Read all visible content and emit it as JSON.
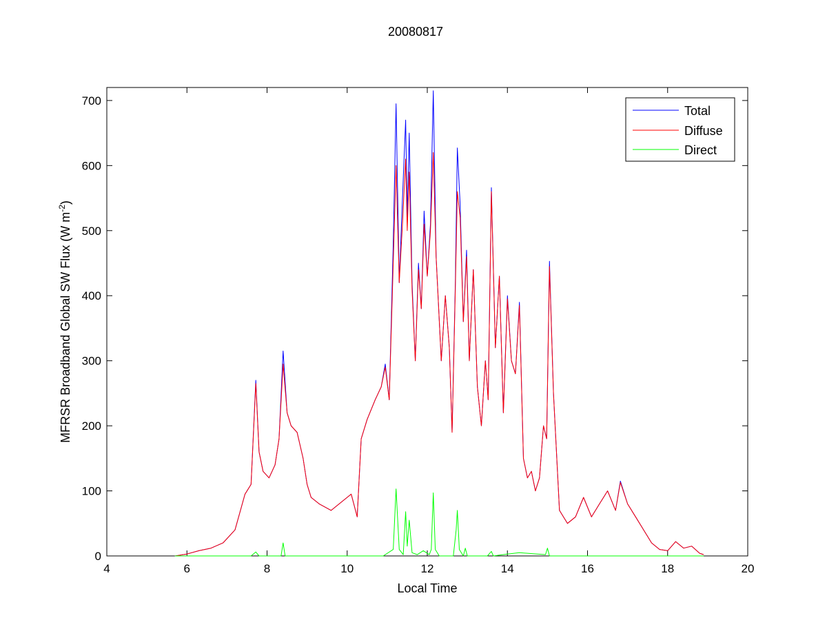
{
  "chart_data": {
    "type": "line",
    "title": "20080817",
    "xlabel": "Local Time",
    "ylabel": "MFRSR Broadband Global SW Flux (W m",
    "ylabel_sup": "-2",
    "ylabel_close": ")",
    "xlim": [
      4,
      20
    ],
    "ylim": [
      0,
      720
    ],
    "xticks": [
      4,
      6,
      8,
      10,
      12,
      14,
      16,
      18,
      20
    ],
    "yticks": [
      0,
      100,
      200,
      300,
      400,
      500,
      600,
      700
    ],
    "grid": false,
    "legend_position": "top-right",
    "series": [
      {
        "name": "Total",
        "color": "#0000ff",
        "x": [
          5.7,
          6.0,
          6.3,
          6.6,
          6.9,
          7.2,
          7.45,
          7.6,
          7.72,
          7.8,
          7.9,
          8.05,
          8.2,
          8.3,
          8.4,
          8.5,
          8.6,
          8.75,
          8.9,
          9.0,
          9.1,
          9.3,
          9.6,
          9.9,
          10.1,
          10.25,
          10.35,
          10.5,
          10.7,
          10.85,
          10.95,
          11.05,
          11.15,
          11.22,
          11.3,
          11.38,
          11.46,
          11.5,
          11.55,
          11.62,
          11.7,
          11.78,
          11.85,
          11.92,
          12.0,
          12.08,
          12.15,
          12.22,
          12.35,
          12.45,
          12.55,
          12.62,
          12.7,
          12.75,
          12.82,
          12.9,
          12.98,
          13.05,
          13.15,
          13.25,
          13.35,
          13.45,
          13.52,
          13.6,
          13.7,
          13.8,
          13.9,
          14.0,
          14.1,
          14.2,
          14.3,
          14.4,
          14.5,
          14.6,
          14.7,
          14.8,
          14.9,
          14.98,
          15.05,
          15.15,
          15.3,
          15.5,
          15.7,
          15.9,
          16.1,
          16.3,
          16.5,
          16.7,
          16.82,
          17.0,
          17.2,
          17.4,
          17.6,
          17.8,
          18.0,
          18.2,
          18.4,
          18.6,
          18.8,
          18.9
        ],
        "y": [
          0,
          3,
          8,
          12,
          20,
          40,
          95,
          110,
          270,
          160,
          130,
          120,
          140,
          180,
          315,
          220,
          200,
          190,
          150,
          110,
          90,
          80,
          70,
          85,
          95,
          60,
          180,
          210,
          240,
          260,
          295,
          240,
          480,
          695,
          420,
          550,
          670,
          520,
          650,
          420,
          300,
          450,
          380,
          530,
          430,
          510,
          715,
          460,
          300,
          400,
          320,
          190,
          420,
          627,
          540,
          360,
          470,
          300,
          440,
          260,
          200,
          300,
          240,
          566,
          320,
          430,
          220,
          400,
          300,
          280,
          390,
          150,
          120,
          130,
          100,
          120,
          200,
          180,
          453,
          250,
          70,
          50,
          60,
          90,
          60,
          80,
          100,
          70,
          115,
          80,
          60,
          40,
          20,
          10,
          8,
          22,
          12,
          15,
          4,
          2
        ]
      },
      {
        "name": "Diffuse",
        "color": "#ff0000",
        "x": [
          5.7,
          6.0,
          6.3,
          6.6,
          6.9,
          7.2,
          7.45,
          7.6,
          7.72,
          7.8,
          7.9,
          8.05,
          8.2,
          8.3,
          8.4,
          8.5,
          8.6,
          8.75,
          8.9,
          9.0,
          9.1,
          9.3,
          9.6,
          9.9,
          10.1,
          10.25,
          10.35,
          10.5,
          10.7,
          10.85,
          10.95,
          11.05,
          11.15,
          11.22,
          11.3,
          11.38,
          11.46,
          11.5,
          11.55,
          11.62,
          11.7,
          11.78,
          11.85,
          11.92,
          12.0,
          12.08,
          12.15,
          12.22,
          12.35,
          12.45,
          12.55,
          12.62,
          12.7,
          12.75,
          12.82,
          12.9,
          12.98,
          13.05,
          13.15,
          13.25,
          13.35,
          13.45,
          13.52,
          13.6,
          13.7,
          13.8,
          13.9,
          14.0,
          14.1,
          14.2,
          14.3,
          14.4,
          14.5,
          14.6,
          14.7,
          14.8,
          14.9,
          14.98,
          15.05,
          15.15,
          15.3,
          15.5,
          15.7,
          15.9,
          16.1,
          16.3,
          16.5,
          16.7,
          16.82,
          17.0,
          17.2,
          17.4,
          17.6,
          17.8,
          18.0,
          18.2,
          18.4,
          18.6,
          18.8,
          18.9
        ],
        "y": [
          0,
          3,
          8,
          12,
          20,
          40,
          95,
          110,
          265,
          160,
          130,
          120,
          140,
          180,
          295,
          220,
          200,
          190,
          150,
          110,
          90,
          80,
          70,
          85,
          95,
          60,
          180,
          210,
          240,
          260,
          290,
          240,
          450,
          600,
          420,
          510,
          610,
          500,
          590,
          410,
          300,
          440,
          380,
          510,
          430,
          500,
          620,
          460,
          300,
          400,
          320,
          190,
          410,
          560,
          520,
          360,
          460,
          300,
          440,
          260,
          200,
          300,
          240,
          560,
          320,
          430,
          220,
          395,
          300,
          280,
          385,
          150,
          120,
          130,
          100,
          120,
          200,
          180,
          445,
          250,
          70,
          50,
          60,
          90,
          60,
          80,
          100,
          70,
          113,
          80,
          60,
          40,
          20,
          10,
          8,
          22,
          12,
          15,
          4,
          2
        ]
      },
      {
        "name": "Direct",
        "color": "#00ff00",
        "x": [
          5.7,
          7.6,
          7.72,
          7.8,
          8.35,
          8.4,
          8.45,
          10.9,
          11.15,
          11.22,
          11.3,
          11.4,
          11.46,
          11.5,
          11.55,
          11.62,
          11.75,
          11.9,
          12.05,
          12.1,
          12.15,
          12.2,
          12.3,
          12.65,
          12.72,
          12.75,
          12.8,
          12.9,
          12.95,
          13.0,
          13.5,
          13.6,
          13.65,
          14.0,
          14.3,
          14.95,
          15.0,
          15.05,
          18.9
        ],
        "y": [
          0,
          0,
          6,
          0,
          0,
          20,
          0,
          0,
          10,
          103,
          10,
          2,
          68,
          15,
          55,
          5,
          2,
          8,
          2,
          10,
          97,
          10,
          0,
          0,
          40,
          70,
          10,
          0,
          12,
          0,
          0,
          7,
          0,
          3,
          5,
          2,
          12,
          0,
          0
        ]
      }
    ]
  }
}
